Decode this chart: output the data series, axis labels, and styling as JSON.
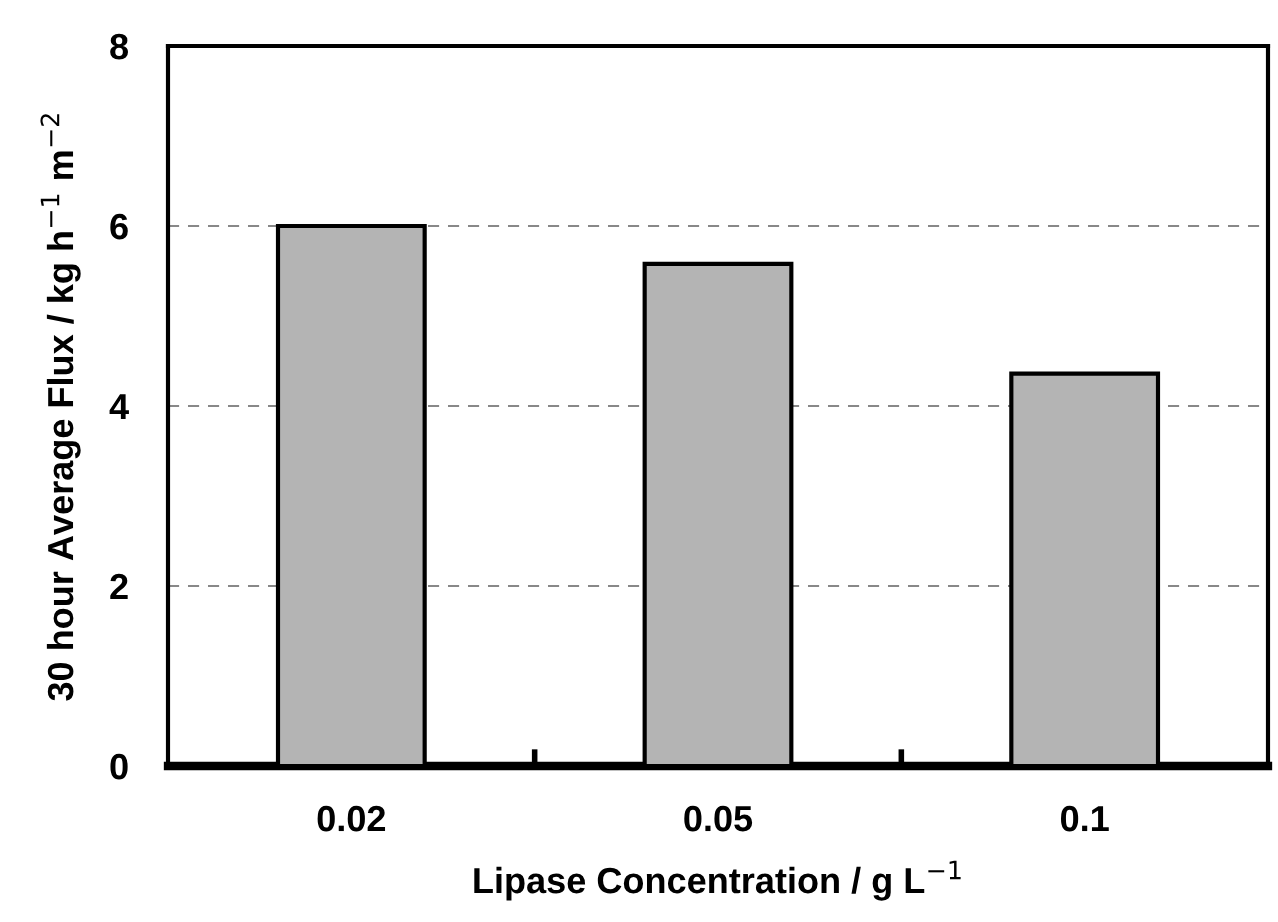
{
  "chart_data": {
    "type": "bar",
    "xlabel": "Lipase Concentration / g L$^{−1}$",
    "ylabel": "30 hour Average Flux / kg h$^{−1}$ m$^{−2}$",
    "categories": [
      "0.02",
      "0.05",
      "0.1"
    ],
    "values": [
      6.0,
      5.58,
      4.36
    ],
    "color": "#b4b4b4",
    "ylim": [
      0,
      8
    ],
    "yticks": [
      0,
      2,
      4,
      6,
      8
    ],
    "grid": "y"
  }
}
